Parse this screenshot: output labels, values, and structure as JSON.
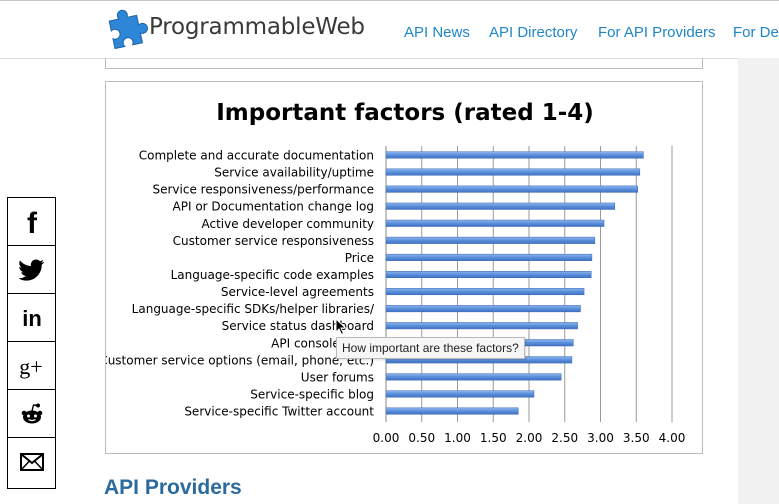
{
  "header": {
    "logo_text": "ProgrammableWeb",
    "nav": [
      {
        "label": "API News"
      },
      {
        "label": "API Directory"
      },
      {
        "label": "For API Providers"
      },
      {
        "label": "For Dev"
      }
    ]
  },
  "chart_data": {
    "type": "bar",
    "orientation": "horizontal",
    "title": "Important factors (rated 1-4)",
    "categories": [
      "Complete and accurate documentation",
      "Service availability/uptime",
      "Service responsiveness/performance",
      "API or Documentation change log",
      "Active developer community",
      "Customer service responsiveness",
      "Price",
      "Language-specific code examples",
      "Service-level agreements",
      "Language-specific SDKs/helper libraries/",
      "Service status dashboard",
      "API console or ex",
      "Customer service options (email, phone, etc.)",
      "User forums",
      "Service-specific blog",
      "Service-specific Twitter account"
    ],
    "values": [
      3.6,
      3.55,
      3.52,
      3.2,
      3.05,
      2.92,
      2.88,
      2.87,
      2.77,
      2.72,
      2.68,
      2.62,
      2.6,
      2.45,
      2.07,
      1.85
    ],
    "xticks": [
      "0.00",
      "0.50",
      "1.00",
      "1.50",
      "2.00",
      "2.50",
      "3.00",
      "3.50",
      "4.00"
    ],
    "xlim": [
      0,
      4
    ],
    "grid": "vertical",
    "legend": "none",
    "bar_color": "#5b8fdb"
  },
  "tooltip": {
    "text": "How important are these factors?"
  },
  "section": {
    "title": "API Providers"
  },
  "share": [
    {
      "icon": "facebook-icon"
    },
    {
      "icon": "twitter-icon"
    },
    {
      "icon": "linkedin-icon"
    },
    {
      "icon": "google-plus-icon"
    },
    {
      "icon": "reddit-icon"
    },
    {
      "icon": "email-icon"
    }
  ]
}
